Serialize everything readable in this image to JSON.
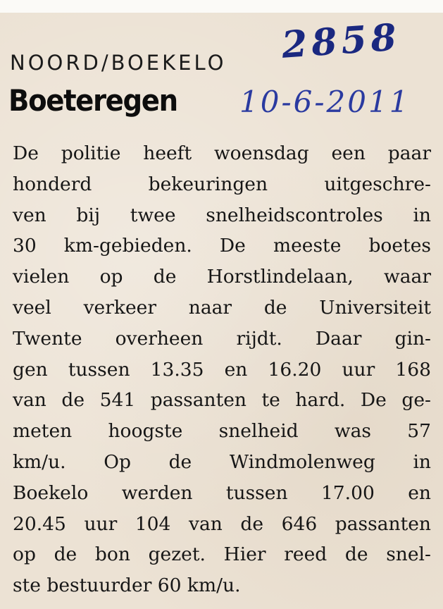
{
  "article": {
    "kicker": "NOORD/BOEKELO",
    "headline": "Boeteregen",
    "handwritten_number": "2858",
    "handwritten_date": "10-6-2011",
    "body_lines": [
      "De politie heeft woensdag een paar",
      "honderd bekeuringen uitgeschre-",
      "ven bij twee snelheidscontroles in",
      "30 km-gebieden. De meeste boetes",
      "vielen op de Horstlindelaan, waar",
      "veel verkeer naar de Universiteit",
      "Twente overheen rijdt. Daar gin-",
      "gen tussen 13.35 en 16.20 uur 168",
      "van de 541 passanten te hard. De ge-",
      "meten hoogste snelheid was 57",
      "km/u. Op de Windmolenweg in",
      "Boekelo werden tussen 17.00 en",
      "20.45 uur 104 van de 646 passanten",
      "op de bon gezet. Hier reed de snel-",
      "ste bestuurder 60 km/u."
    ]
  },
  "colors": {
    "paper": "#ece2d4",
    "ink": "#161616",
    "pen": "#1f2f8a"
  }
}
